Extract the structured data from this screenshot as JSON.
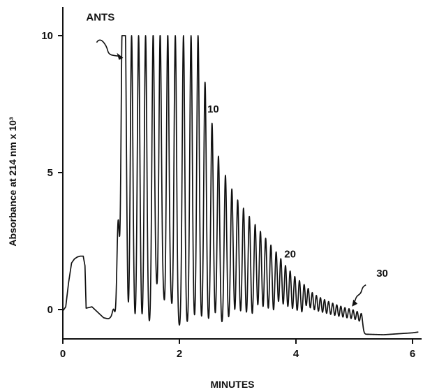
{
  "chart_data": {
    "type": "line",
    "title": "",
    "xlabel": "MINUTES",
    "ylabel": "Absorbance at 214 nm x 10³",
    "xlim": [
      0,
      6.1
    ],
    "ylim": [
      -1.0,
      10.9
    ],
    "x_ticks": [
      0,
      2,
      4,
      6
    ],
    "x_tick_labels": [
      "0",
      "2",
      "4",
      "6"
    ],
    "y_ticks": [
      0,
      5,
      10
    ],
    "y_tick_labels": [
      "0",
      "5",
      "10"
    ],
    "grid": false,
    "legend": "none",
    "line_color": "#111111",
    "baseline": {
      "x": [
        0,
        0.05,
        0.1,
        0.15,
        0.2,
        0.25,
        0.3,
        0.35,
        0.38,
        0.4,
        0.5,
        0.6,
        0.7,
        0.8,
        0.85,
        0.9,
        0.92,
        0.95,
        1.0,
        1.5,
        2.0,
        2.5,
        3.0,
        3.5,
        4.0,
        4.5,
        5.0,
        5.2,
        5.5,
        6.0,
        6.1
      ],
      "y": [
        -0.05,
        0.1,
        1.0,
        1.7,
        1.85,
        1.92,
        1.95,
        1.95,
        1.6,
        0.05,
        0.1,
        -0.1,
        -0.3,
        -0.35,
        -0.4,
        -0.5,
        -0.55,
        -0.62,
        -0.65,
        -0.68,
        -0.7,
        -0.72,
        -0.74,
        -0.74,
        -0.74,
        -0.72,
        -0.75,
        -0.9,
        -0.92,
        -0.85,
        -0.82
      ]
    },
    "peaks": {
      "x": [
        0.95,
        1.02,
        1.07,
        1.18,
        1.3,
        1.42,
        1.55,
        1.67,
        1.8,
        1.93,
        2.07,
        2.2,
        2.32,
        2.44,
        2.56,
        2.67,
        2.79,
        2.9,
        3.0,
        3.1,
        3.2,
        3.3,
        3.39,
        3.48,
        3.57,
        3.66,
        3.74,
        3.82,
        3.9,
        3.98,
        4.06,
        4.14,
        4.21,
        4.28,
        4.35,
        4.42,
        4.49,
        4.56,
        4.63,
        4.7,
        4.77,
        4.84,
        4.91,
        4.98,
        5.05,
        5.12
      ],
      "y": [
        3.2,
        10.0,
        10.0,
        10.0,
        10.0,
        10.0,
        10.0,
        10.0,
        10.0,
        10.0,
        10.0,
        10.0,
        10.0,
        8.3,
        6.8,
        5.6,
        4.9,
        4.4,
        4.0,
        3.7,
        3.4,
        3.1,
        2.85,
        2.6,
        2.35,
        2.1,
        1.85,
        1.6,
        1.4,
        1.2,
        1.05,
        0.9,
        0.75,
        0.6,
        0.5,
        0.42,
        0.35,
        0.28,
        0.22,
        0.16,
        0.11,
        0.06,
        0.02,
        -0.02,
        -0.08,
        -0.15
      ]
    },
    "small_peaks": {
      "x": [
        0.82,
        0.87,
        1.6,
        1.72,
        1.85
      ],
      "y": [
        -0.3,
        0.0,
        0.6,
        0.4,
        0.2
      ]
    },
    "annotations": [
      {
        "text": "ANTS",
        "x": 0.4,
        "y": 10.55
      },
      {
        "text": "10",
        "x": 2.48,
        "y": 7.2
      },
      {
        "text": "20",
        "x": 3.8,
        "y": 1.9
      },
      {
        "text": "30",
        "x": 5.38,
        "y": 1.2
      }
    ]
  }
}
